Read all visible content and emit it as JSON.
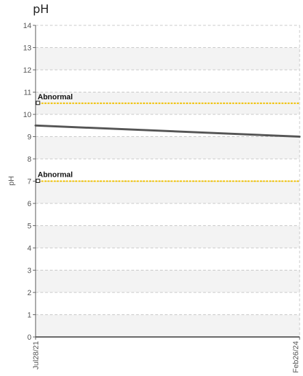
{
  "chart_data": {
    "type": "line",
    "title": "pH",
    "ylabel": "pH",
    "xlabel": "",
    "ylim": [
      0,
      14
    ],
    "yticks": [
      0,
      1,
      2,
      3,
      4,
      5,
      6,
      7,
      8,
      9,
      10,
      11,
      12,
      13,
      14
    ],
    "x_tick_labels": [
      "Jul28/21",
      "Feb26/24"
    ],
    "series": [
      {
        "x": [
          "Jul28/21",
          "Feb26/24"
        ],
        "values": [
          9.5,
          9.0
        ],
        "color": "#555555"
      }
    ],
    "reference_lines": [
      {
        "label": "Abnormal",
        "value": 10.5,
        "color": "#f0c000"
      },
      {
        "label": "Abnormal",
        "value": 7.0,
        "color": "#f0c000"
      }
    ],
    "grid": true,
    "band_colors": [
      "#f3f3f3",
      "#ffffff"
    ]
  }
}
